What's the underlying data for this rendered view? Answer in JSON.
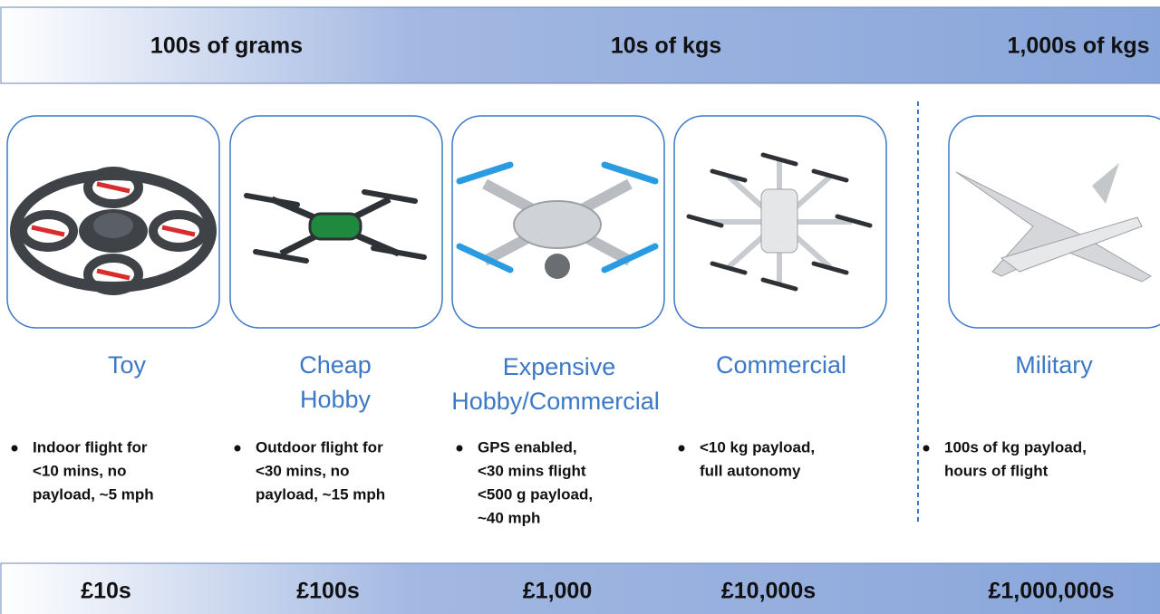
{
  "header": {
    "weights": [
      "100s of grams",
      "10s of kgs",
      "1,000s of kgs"
    ]
  },
  "classes": [
    {
      "name": [
        "Toy"
      ],
      "details": [
        "Indoor flight for",
        "<10 mins, no",
        "payload, ~5 mph"
      ]
    },
    {
      "name": [
        "Cheap",
        "Hobby"
      ],
      "details": [
        "Outdoor flight for",
        "<30 mins, no",
        "payload, ~15 mph"
      ]
    },
    {
      "name": [
        "Expensive",
        "Hobby/Commercial"
      ],
      "details": [
        "GPS enabled,",
        "<30 mins flight",
        "<500 g payload,",
        "~40 mph"
      ]
    },
    {
      "name": [
        "Commercial"
      ],
      "details": [
        "<10 kg payload,",
        "full autonomy"
      ]
    },
    {
      "name": [
        "Military"
      ],
      "details": [
        "100s of kg payload,",
        "hours of flight"
      ]
    }
  ],
  "footer": {
    "prices": [
      "£10s",
      "£100s",
      "£1,000",
      "£10,000s",
      "£1,000,000s"
    ]
  }
}
